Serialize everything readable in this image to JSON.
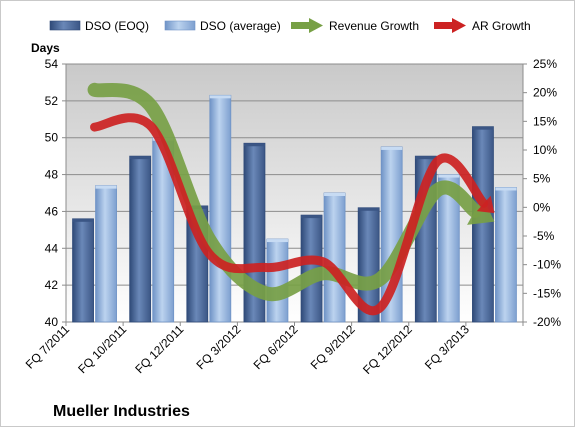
{
  "chart_data": {
    "type": "bar",
    "title": "",
    "company": "Mueller Industries",
    "ylabel": "Days",
    "ylim": [
      40,
      54
    ],
    "y_ticks": [
      40,
      42,
      44,
      46,
      48,
      50,
      52,
      54
    ],
    "y2lim": [
      -20,
      25
    ],
    "y2_ticks": [
      "-20%",
      "-15%",
      "-10%",
      "-5%",
      "0%",
      "5%",
      "10%",
      "15%",
      "20%",
      "25%"
    ],
    "y2_values": [
      -20,
      -15,
      -10,
      -5,
      0,
      5,
      10,
      15,
      20,
      25
    ],
    "grid": true,
    "legend_position": "top",
    "x_tick_labels": [
      "FQ 7/2011",
      "FQ 10/2011",
      "FQ 12/2011",
      "FQ 3/2012",
      "FQ 6/2012",
      "FQ 9/2012",
      "FQ 12/2012",
      "FQ 3/2013"
    ],
    "categories": [
      "FQ 7/2011",
      "FQ 10/2011",
      "FQ 12/2011",
      "FQ 3/2012",
      "FQ 6/2012",
      "FQ 9/2012",
      "FQ 12/2012",
      "FQ 3/2013"
    ],
    "series": [
      {
        "name": "DSO (EOQ)",
        "type": "bar",
        "axis": "left",
        "color": "#4f6d9c",
        "values": [
          45.6,
          49.0,
          46.3,
          49.7,
          45.8,
          46.2,
          49.0,
          50.6
        ]
      },
      {
        "name": "DSO (average)",
        "type": "bar",
        "axis": "left",
        "color": "#9dbce6",
        "values": [
          47.4,
          50.0,
          52.3,
          44.5,
          47.0,
          49.5,
          48.0,
          47.3
        ]
      },
      {
        "name": "Revenue Growth",
        "type": "line",
        "axis": "right",
        "color": "#77a045",
        "values": [
          20.5,
          17.5,
          -5.5,
          -15.0,
          -11.5,
          -12.5,
          3.0,
          -2.5
        ]
      },
      {
        "name": "AR Growth",
        "type": "line",
        "axis": "right",
        "color": "#cc2222",
        "values": [
          14.0,
          14.0,
          -8.0,
          -10.5,
          -9.5,
          -17.5,
          8.0,
          -1.0
        ]
      }
    ]
  }
}
